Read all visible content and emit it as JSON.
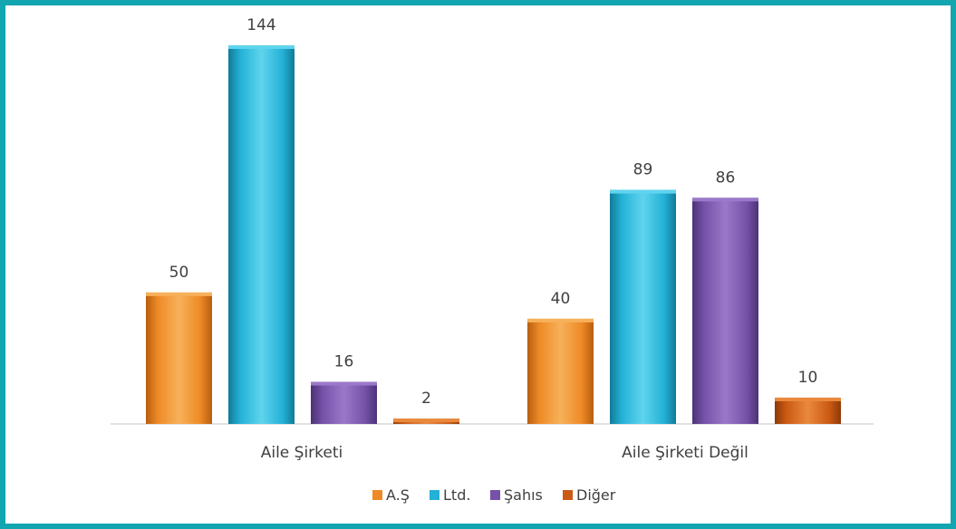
{
  "chart_data": {
    "type": "bar",
    "categories": [
      "Aile Şirketi",
      "Aile Şirketi Değil"
    ],
    "series": [
      {
        "name": "A.Ş",
        "values": [
          50,
          40
        ]
      },
      {
        "name": "Ltd.",
        "values": [
          144,
          89
        ]
      },
      {
        "name": "Şahıs",
        "values": [
          16,
          86
        ]
      },
      {
        "name": "Diğer",
        "values": [
          2,
          10
        ]
      }
    ],
    "ylim": [
      0,
      150
    ],
    "grid": false,
    "legend": "bottom",
    "data_labels": true,
    "title": "",
    "xlabel": "",
    "ylabel": ""
  },
  "colors": {
    "frame": "#12a6b0",
    "series": [
      {
        "top": "#f7b15a",
        "base": "#ee8a26",
        "dark": "#b85e0f"
      },
      {
        "top": "#5fd4ee",
        "base": "#23b1d6",
        "dark": "#127a97"
      },
      {
        "top": "#9b78c9",
        "base": "#7552a8",
        "dark": "#4c3276"
      },
      {
        "top": "#e9893d",
        "base": "#cc5a14",
        "dark": "#8e3a08"
      }
    ]
  }
}
